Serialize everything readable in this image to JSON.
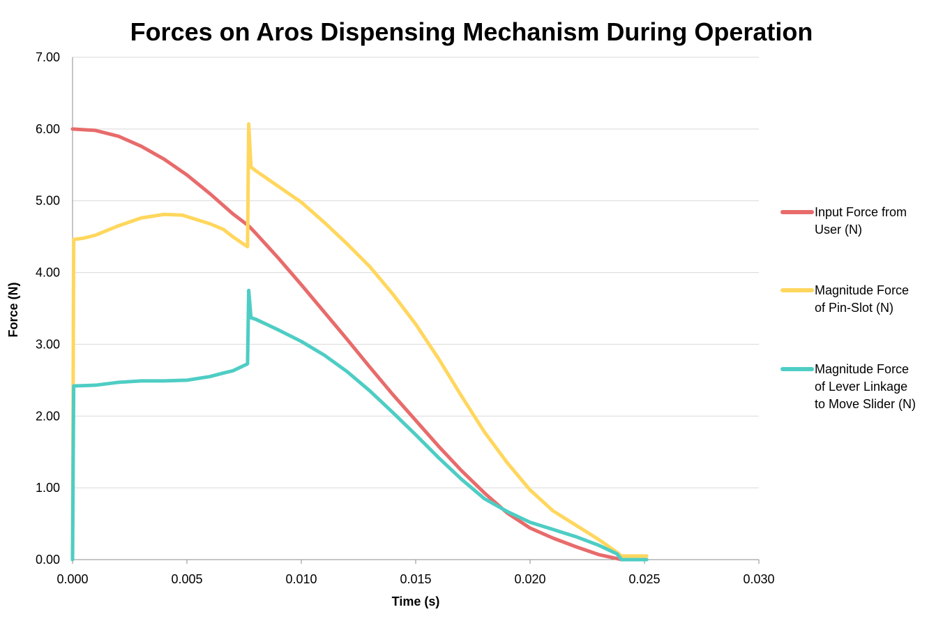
{
  "chart_data": {
    "type": "line",
    "title": "Forces on Aros Dispensing Mechanism During Operation",
    "xlabel": "Time (s)",
    "ylabel": "Force (N)",
    "xlim": [
      0,
      0.03
    ],
    "ylim": [
      0,
      7
    ],
    "x_ticks": [
      "0.000",
      "0.005",
      "0.010",
      "0.015",
      "0.020",
      "0.025",
      "0.030"
    ],
    "y_ticks": [
      "0.00",
      "1.00",
      "2.00",
      "3.00",
      "4.00",
      "5.00",
      "6.00",
      "7.00"
    ],
    "grid": true,
    "legend_position": "right",
    "series": [
      {
        "name": "Input Force from User (N)",
        "legend_lines": [
          "Input Force from",
          "User (N)"
        ],
        "color": "#e86b6b",
        "points": [
          [
            0,
            6.0
          ],
          [
            0.001,
            5.98
          ],
          [
            0.002,
            5.9
          ],
          [
            0.003,
            5.76
          ],
          [
            0.004,
            5.58
          ],
          [
            0.005,
            5.36
          ],
          [
            0.006,
            5.1
          ],
          [
            0.007,
            4.82
          ],
          [
            0.0077,
            4.65
          ],
          [
            0.008,
            4.55
          ],
          [
            0.009,
            4.2
          ],
          [
            0.01,
            3.83
          ],
          [
            0.011,
            3.45
          ],
          [
            0.012,
            3.07
          ],
          [
            0.013,
            2.68
          ],
          [
            0.014,
            2.3
          ],
          [
            0.015,
            1.94
          ],
          [
            0.016,
            1.58
          ],
          [
            0.017,
            1.24
          ],
          [
            0.018,
            0.93
          ],
          [
            0.019,
            0.65
          ],
          [
            0.02,
            0.44
          ],
          [
            0.021,
            0.3
          ],
          [
            0.022,
            0.18
          ],
          [
            0.023,
            0.07
          ],
          [
            0.024,
            0.0
          ]
        ]
      },
      {
        "name": "Magnitude Force of Pin-Slot (N)",
        "legend_lines": [
          "Magnitude Force",
          "of Pin-Slot (N)"
        ],
        "color": "#ffd75e",
        "points": [
          [
            0.0,
            0.0
          ],
          [
            5e-05,
            4.46
          ],
          [
            0.0005,
            4.48
          ],
          [
            0.001,
            4.52
          ],
          [
            0.002,
            4.65
          ],
          [
            0.003,
            4.76
          ],
          [
            0.004,
            4.81
          ],
          [
            0.0048,
            4.8
          ],
          [
            0.005,
            4.78
          ],
          [
            0.006,
            4.68
          ],
          [
            0.0066,
            4.6
          ],
          [
            0.007,
            4.5
          ],
          [
            0.0076,
            4.37
          ],
          [
            0.00765,
            4.36
          ],
          [
            0.0077,
            6.07
          ],
          [
            0.0078,
            5.47
          ],
          [
            0.008,
            5.42
          ],
          [
            0.009,
            5.2
          ],
          [
            0.01,
            4.98
          ],
          [
            0.011,
            4.7
          ],
          [
            0.012,
            4.4
          ],
          [
            0.013,
            4.08
          ],
          [
            0.014,
            3.7
          ],
          [
            0.015,
            3.28
          ],
          [
            0.016,
            2.8
          ],
          [
            0.017,
            2.28
          ],
          [
            0.018,
            1.78
          ],
          [
            0.019,
            1.35
          ],
          [
            0.02,
            0.97
          ],
          [
            0.021,
            0.68
          ],
          [
            0.022,
            0.48
          ],
          [
            0.023,
            0.28
          ],
          [
            0.0238,
            0.1
          ],
          [
            0.024,
            0.05
          ],
          [
            0.0251,
            0.05
          ]
        ]
      },
      {
        "name": "Magnitude Force of Lever Linkage to Move Slider (N)",
        "legend_lines": [
          "Magnitude Force",
          "of Lever Linkage",
          "to Move Slider (N)"
        ],
        "color": "#4ecdc4",
        "points": [
          [
            0.0,
            0.0
          ],
          [
            5e-05,
            2.42
          ],
          [
            0.001,
            2.43
          ],
          [
            0.002,
            2.47
          ],
          [
            0.003,
            2.49
          ],
          [
            0.004,
            2.49
          ],
          [
            0.005,
            2.5
          ],
          [
            0.006,
            2.55
          ],
          [
            0.0066,
            2.6
          ],
          [
            0.007,
            2.63
          ],
          [
            0.0076,
            2.72
          ],
          [
            0.00765,
            2.73
          ],
          [
            0.0077,
            3.75
          ],
          [
            0.0078,
            3.37
          ],
          [
            0.008,
            3.35
          ],
          [
            0.009,
            3.2
          ],
          [
            0.01,
            3.04
          ],
          [
            0.011,
            2.85
          ],
          [
            0.012,
            2.62
          ],
          [
            0.013,
            2.35
          ],
          [
            0.014,
            2.05
          ],
          [
            0.015,
            1.74
          ],
          [
            0.016,
            1.42
          ],
          [
            0.017,
            1.12
          ],
          [
            0.018,
            0.85
          ],
          [
            0.019,
            0.67
          ],
          [
            0.02,
            0.52
          ],
          [
            0.021,
            0.42
          ],
          [
            0.022,
            0.32
          ],
          [
            0.023,
            0.2
          ],
          [
            0.0238,
            0.08
          ],
          [
            0.024,
            0.0
          ],
          [
            0.0251,
            0.0
          ]
        ]
      }
    ]
  }
}
